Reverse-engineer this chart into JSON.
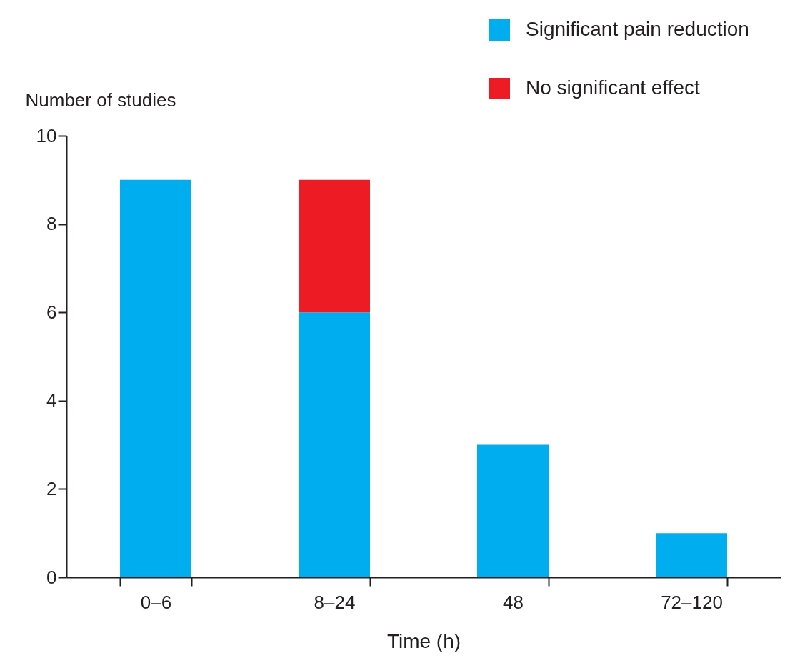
{
  "chart_data": {
    "type": "bar",
    "stacked": true,
    "xlabel": "Time (h)",
    "ylabel": "Number of studies",
    "categories": [
      "0–6",
      "8–24",
      "48",
      "72–120"
    ],
    "series": [
      {
        "name": "Significant pain reduction",
        "color": "#00aeef",
        "values": [
          9,
          6,
          3,
          1
        ]
      },
      {
        "name": "No significant effect",
        "color": "#ed1c24",
        "values": [
          null,
          3,
          null,
          null
        ]
      }
    ],
    "ylim": [
      0,
      10
    ],
    "yticks": [
      0,
      2,
      4,
      6,
      8,
      10
    ],
    "grid": false,
    "legend": "top right"
  }
}
